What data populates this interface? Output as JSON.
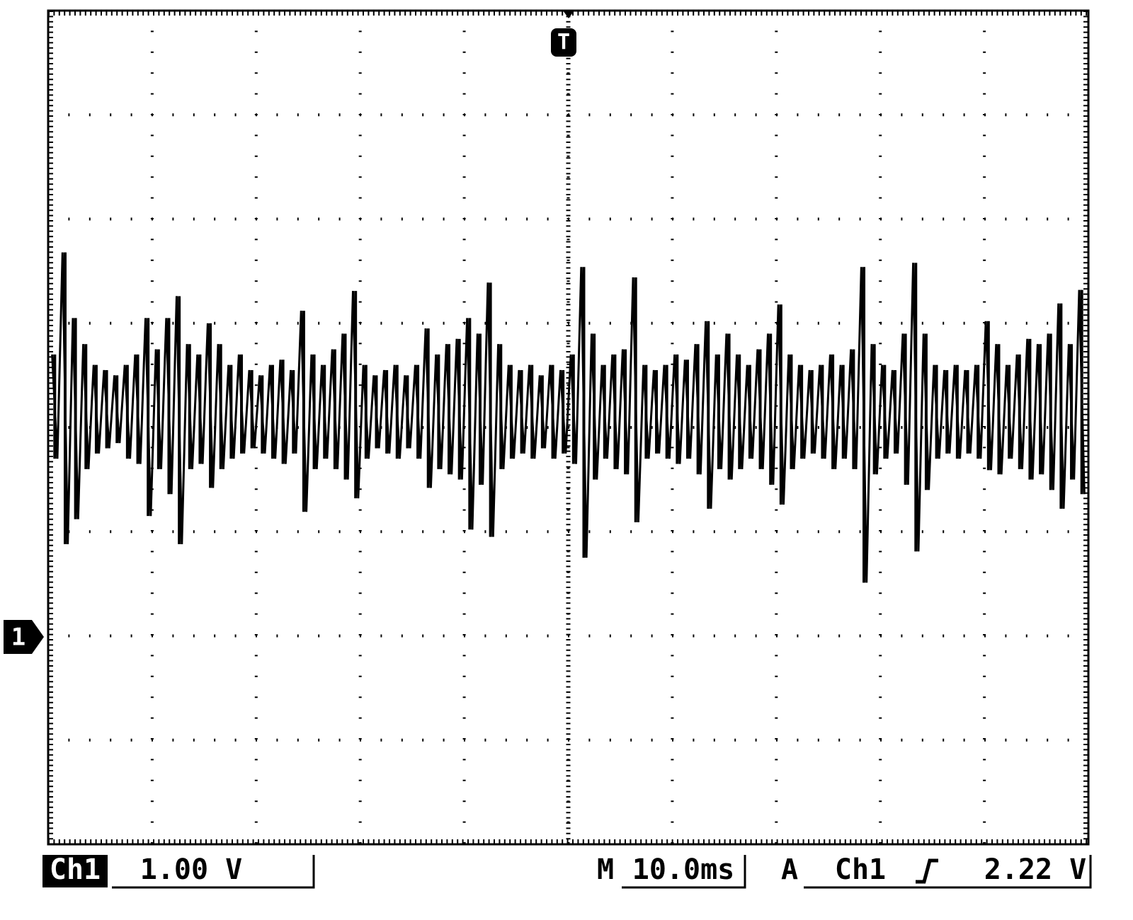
{
  "screen": {
    "trigger_marker": "T",
    "channel_marker": "1",
    "waveform": {
      "ylim": [
        -2,
        6
      ],
      "max": [
        2.7,
        3.68,
        3.05,
        2.8,
        2.6,
        2.55,
        2.5,
        2.6,
        2.7,
        3.05,
        2.75,
        3.05,
        3.26,
        2.8,
        2.7,
        3.0,
        2.8,
        2.6,
        2.7,
        2.55,
        2.5,
        2.6,
        2.65,
        2.55,
        3.12,
        2.7,
        2.6,
        2.75,
        2.9,
        3.31,
        2.6,
        2.5,
        2.55,
        2.6,
        2.5,
        2.6,
        2.95,
        2.7,
        2.8,
        2.85,
        3.05,
        2.9,
        3.39,
        2.8,
        2.6,
        2.55,
        2.6,
        2.5,
        2.6,
        2.55,
        2.7,
        3.54,
        2.9,
        2.6,
        2.7,
        2.75,
        3.44,
        2.6,
        2.55,
        2.6,
        2.7,
        2.65,
        2.8,
        3.02,
        2.7,
        2.9,
        2.7,
        2.6,
        2.75,
        2.9,
        3.18,
        2.7,
        2.6,
        2.55,
        2.6,
        2.7,
        2.6,
        2.75,
        3.54,
        2.8,
        2.6,
        2.55,
        2.9,
        3.58,
        2.9,
        2.6,
        2.55,
        2.6,
        2.55,
        2.6,
        3.02,
        2.8,
        2.6,
        2.7,
        2.85,
        2.8,
        2.9,
        3.19,
        2.8,
        3.32
      ],
      "min": [
        1.7,
        0.88,
        1.12,
        1.6,
        1.75,
        1.8,
        1.85,
        1.7,
        1.65,
        1.15,
        1.6,
        1.36,
        0.88,
        1.6,
        1.65,
        1.42,
        1.6,
        1.7,
        1.75,
        1.8,
        1.75,
        1.7,
        1.65,
        1.75,
        1.19,
        1.6,
        1.7,
        1.6,
        1.5,
        1.32,
        1.7,
        1.8,
        1.75,
        1.7,
        1.8,
        1.7,
        1.42,
        1.6,
        1.55,
        1.5,
        1.02,
        1.45,
        0.95,
        1.6,
        1.7,
        1.75,
        1.7,
        1.8,
        1.7,
        1.75,
        1.65,
        0.75,
        1.5,
        1.7,
        1.6,
        1.55,
        1.09,
        1.7,
        1.75,
        1.7,
        1.65,
        1.7,
        1.55,
        1.22,
        1.6,
        1.5,
        1.6,
        1.7,
        1.6,
        1.45,
        1.26,
        1.6,
        1.7,
        1.75,
        1.7,
        1.6,
        1.7,
        1.6,
        0.51,
        1.55,
        1.7,
        1.75,
        1.45,
        0.81,
        1.4,
        1.7,
        1.75,
        1.7,
        1.75,
        1.7,
        1.59,
        1.55,
        1.7,
        1.6,
        1.5,
        1.55,
        1.4,
        1.22,
        1.5,
        1.36
      ]
    }
  },
  "status_bar": {
    "channel": "Ch1",
    "scale": "1.00 V",
    "timebase_prefix": "M",
    "timebase": "10.0ms",
    "trigger_mode": "A",
    "trigger_source": "Ch1",
    "trigger_level": "2.22 V"
  }
}
